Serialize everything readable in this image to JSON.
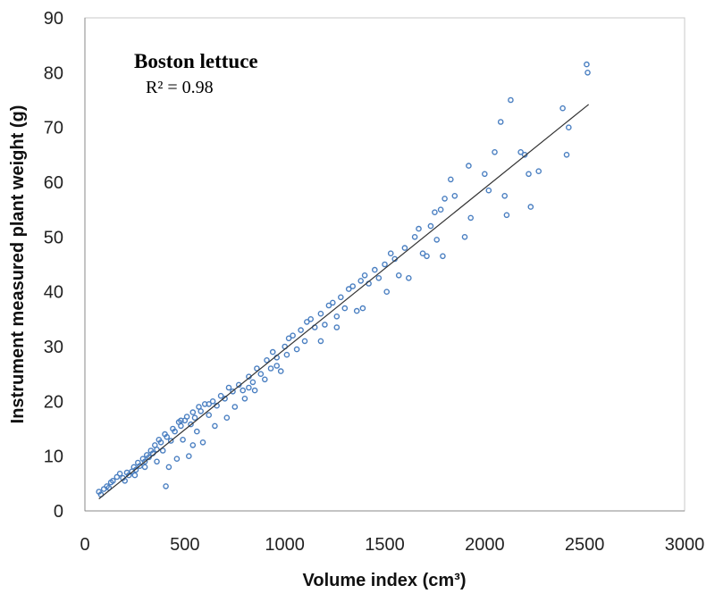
{
  "chart_data": {
    "type": "scatter",
    "title": "Boston lettuce",
    "annotation": "R² = 0.98",
    "xlabel": "Volume index (cm³)",
    "ylabel": "Instrument measured plant weight (g)",
    "xlim": [
      0,
      3000
    ],
    "ylim": [
      0,
      90
    ],
    "x_ticks": [
      "0",
      "500",
      "1000",
      "1500",
      "2000",
      "2500",
      "3000"
    ],
    "y_ticks": [
      "0",
      "10",
      "20",
      "30",
      "40",
      "50",
      "60",
      "70",
      "80",
      "90"
    ],
    "grid": false,
    "marker_color": "#4a7fc1",
    "trendline": {
      "x": [
        70,
        2520
      ],
      "y": [
        2.2,
        74.2
      ],
      "color": "#333333"
    },
    "series": [
      {
        "points": [
          [
            70,
            3.5
          ],
          [
            80,
            3.0
          ],
          [
            95,
            4.0
          ],
          [
            110,
            4.5
          ],
          [
            120,
            4.2
          ],
          [
            130,
            5.2
          ],
          [
            140,
            5.5
          ],
          [
            160,
            6.2
          ],
          [
            175,
            6.8
          ],
          [
            190,
            6.0
          ],
          [
            200,
            5.5
          ],
          [
            210,
            7.0
          ],
          [
            220,
            6.5
          ],
          [
            235,
            7.2
          ],
          [
            245,
            8.0
          ],
          [
            255,
            7.5
          ],
          [
            265,
            8.8
          ],
          [
            275,
            8.2
          ],
          [
            290,
            9.5
          ],
          [
            300,
            9.0
          ],
          [
            310,
            10.2
          ],
          [
            320,
            9.8
          ],
          [
            330,
            11.0
          ],
          [
            340,
            10.5
          ],
          [
            350,
            12.0
          ],
          [
            360,
            11.2
          ],
          [
            370,
            13.0
          ],
          [
            380,
            12.5
          ],
          [
            390,
            11.0
          ],
          [
            400,
            14.0
          ],
          [
            410,
            13.5
          ],
          [
            420,
            8.0
          ],
          [
            405,
            4.5
          ],
          [
            430,
            12.8
          ],
          [
            440,
            15.0
          ],
          [
            450,
            14.5
          ],
          [
            460,
            9.5
          ],
          [
            470,
            16.2
          ],
          [
            480,
            15.5
          ],
          [
            490,
            13.0
          ],
          [
            500,
            16.5
          ],
          [
            510,
            17.2
          ],
          [
            520,
            10.0
          ],
          [
            530,
            15.8
          ],
          [
            540,
            18.0
          ],
          [
            550,
            17.0
          ],
          [
            560,
            14.5
          ],
          [
            570,
            19.0
          ],
          [
            580,
            18.2
          ],
          [
            590,
            12.5
          ],
          [
            600,
            19.5
          ],
          [
            620,
            17.5
          ],
          [
            640,
            20.0
          ],
          [
            650,
            15.5
          ],
          [
            660,
            19.2
          ],
          [
            680,
            21.0
          ],
          [
            700,
            20.5
          ],
          [
            710,
            17.0
          ],
          [
            720,
            22.5
          ],
          [
            740,
            21.8
          ],
          [
            750,
            19.0
          ],
          [
            770,
            23.0
          ],
          [
            790,
            22.0
          ],
          [
            800,
            20.5
          ],
          [
            820,
            24.5
          ],
          [
            840,
            23.5
          ],
          [
            850,
            22.0
          ],
          [
            860,
            26.0
          ],
          [
            880,
            25.0
          ],
          [
            900,
            24.0
          ],
          [
            910,
            27.5
          ],
          [
            930,
            26.0
          ],
          [
            940,
            29.0
          ],
          [
            960,
            28.0
          ],
          [
            980,
            25.5
          ],
          [
            1000,
            30.0
          ],
          [
            1010,
            28.5
          ],
          [
            1020,
            31.5
          ],
          [
            1040,
            32.0
          ],
          [
            1060,
            29.5
          ],
          [
            1080,
            33.0
          ],
          [
            1100,
            31.0
          ],
          [
            1110,
            34.5
          ],
          [
            1130,
            35.0
          ],
          [
            1150,
            33.5
          ],
          [
            1180,
            36.0
          ],
          [
            1200,
            34.0
          ],
          [
            1220,
            37.5
          ],
          [
            1240,
            38.0
          ],
          [
            1260,
            35.5
          ],
          [
            1280,
            39.0
          ],
          [
            1300,
            37.0
          ],
          [
            1320,
            40.5
          ],
          [
            1340,
            41.0
          ],
          [
            1360,
            36.5
          ],
          [
            1380,
            42.0
          ],
          [
            1400,
            43.0
          ],
          [
            1420,
            41.5
          ],
          [
            1450,
            44.0
          ],
          [
            1470,
            42.5
          ],
          [
            1500,
            45.0
          ],
          [
            1510,
            40.0
          ],
          [
            1530,
            47.0
          ],
          [
            1550,
            46.0
          ],
          [
            1570,
            43.0
          ],
          [
            1600,
            48.0
          ],
          [
            1620,
            42.5
          ],
          [
            1650,
            50.0
          ],
          [
            1670,
            51.5
          ],
          [
            1690,
            47.0
          ],
          [
            1710,
            46.5
          ],
          [
            1730,
            52.0
          ],
          [
            1750,
            54.5
          ],
          [
            1760,
            49.5
          ],
          [
            1780,
            55.0
          ],
          [
            1790,
            46.5
          ],
          [
            1800,
            57.0
          ],
          [
            1830,
            60.5
          ],
          [
            1850,
            57.5
          ],
          [
            1900,
            50.0
          ],
          [
            1920,
            63.0
          ],
          [
            1930,
            53.5
          ],
          [
            2000,
            61.5
          ],
          [
            2020,
            58.5
          ],
          [
            2050,
            65.5
          ],
          [
            2080,
            71.0
          ],
          [
            2100,
            57.5
          ],
          [
            2110,
            54.0
          ],
          [
            2130,
            75.0
          ],
          [
            2180,
            65.5
          ],
          [
            2200,
            65.0
          ],
          [
            2220,
            61.5
          ],
          [
            2230,
            55.5
          ],
          [
            2270,
            62.0
          ],
          [
            2390,
            73.5
          ],
          [
            2410,
            65.0
          ],
          [
            2420,
            70.0
          ],
          [
            2510,
            81.5
          ],
          [
            2515,
            80.0
          ],
          [
            1180,
            31.0
          ],
          [
            1260,
            33.5
          ],
          [
            1390,
            37.0
          ],
          [
            960,
            26.5
          ],
          [
            820,
            22.5
          ],
          [
            620,
            19.5
          ],
          [
            540,
            12.0
          ],
          [
            480,
            16.5
          ],
          [
            360,
            9.0
          ],
          [
            300,
            8.0
          ],
          [
            250,
            6.5
          ]
        ]
      }
    ]
  }
}
